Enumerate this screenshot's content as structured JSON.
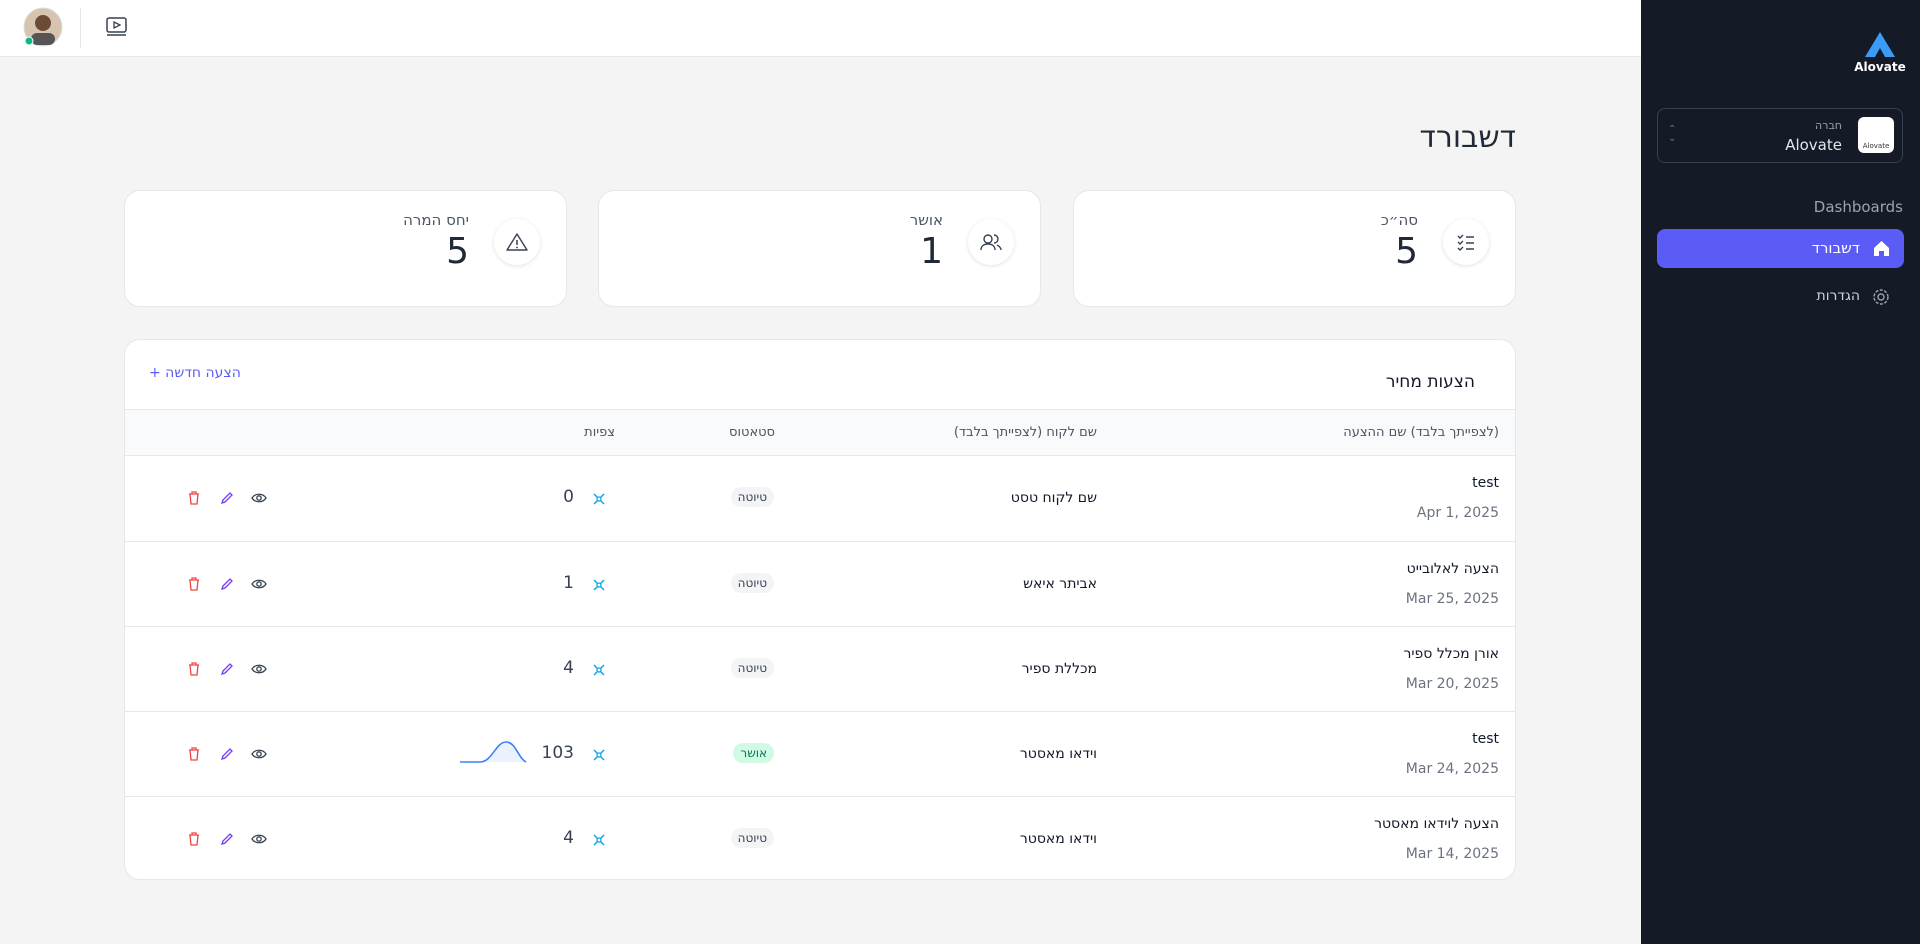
{
  "sidebar": {
    "logo": "Alovate",
    "company_label": "חברה",
    "company_name": "Alovate",
    "company_logo": "Alovate",
    "section": "Dashboards",
    "nav": [
      "דשבורד",
      "הגדרות"
    ]
  },
  "page": {
    "title": "דשבורד"
  },
  "stats": [
    {
      "label": "סה״כ",
      "value": 5
    },
    {
      "label": "אושר",
      "value": 1
    },
    {
      "label": "יחס המרה",
      "value": 5
    }
  ],
  "table": {
    "title": "הצעות מחיר",
    "new_button": "הצעה חדשה +",
    "columns": [
      "(לצפייתך בלבד) שם ההצעה",
      "שם לקוח (לצפייתך בלבד)",
      "סטאטוס",
      "צפיות"
    ],
    "rows": [
      {
        "name": "test",
        "date": "Apr 1, 2025",
        "customer": "שם לקוח טסט",
        "status": "טיוטה",
        "views": 0
      },
      {
        "name": "הצעה לאלובייט",
        "date": "Mar 25, 2025",
        "customer": "אביתר איאש",
        "status": "טיוטה",
        "views": 1
      },
      {
        "name": "אורן מכלל ספיר",
        "date": "Mar 20, 2025",
        "customer": "מכללת ספיר",
        "status": "טיוטה",
        "views": 4
      },
      {
        "name": "test",
        "date": "Mar 24, 2025",
        "customer": "וידאו מאסטר",
        "status": "אושר",
        "views": 103
      },
      {
        "name": "הצעה לוידאו מאסטר",
        "date": "Mar 14, 2025",
        "customer": "וידאו מאסטר",
        "status": "טיוטה",
        "views": 4
      }
    ]
  }
}
